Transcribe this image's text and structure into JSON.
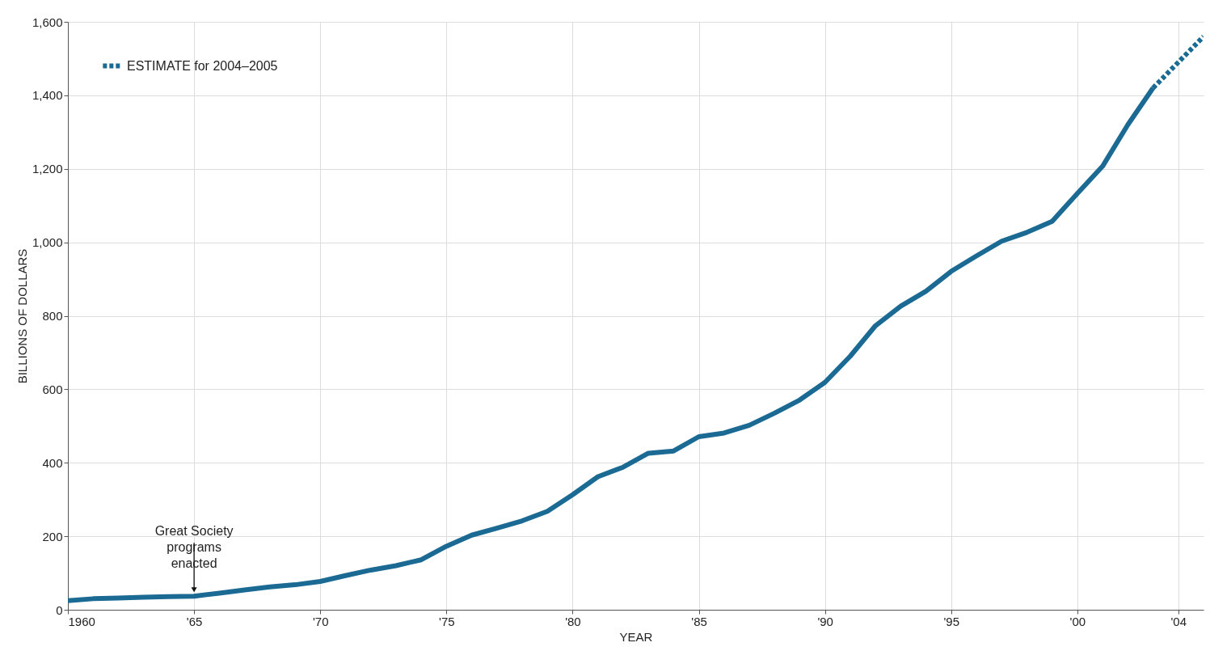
{
  "chart_data": {
    "type": "line",
    "xlabel": "YEAR",
    "ylabel": "BILLIONS OF DOLLARS",
    "x": [
      1960,
      1961,
      1962,
      1963,
      1964,
      1965,
      1966,
      1967,
      1968,
      1969,
      1970,
      1971,
      1972,
      1973,
      1974,
      1975,
      1976,
      1977,
      1978,
      1979,
      1980,
      1981,
      1982,
      1983,
      1984,
      1985,
      1986,
      1987,
      1988,
      1989,
      1990,
      1991,
      1992,
      1993,
      1994,
      1995,
      1996,
      1997,
      1998,
      1999,
      2000,
      2001,
      2002,
      2003
    ],
    "series": [
      {
        "color": "#1b6a94",
        "line_style": "solid",
        "values": [
          25,
          30,
          32,
          34,
          36,
          37,
          45,
          54,
          62,
          68,
          77,
          93,
          108,
          120,
          136,
          173,
          203,
          222,
          242,
          268,
          313,
          362,
          388,
          426,
          432,
          471,
          481,
          502,
          535,
          571,
          619,
          690,
          773,
          826,
          867,
          921,
          963,
          1003,
          1027,
          1057,
          1133,
          1207,
          1320,
          1420
        ]
      },
      {
        "name": "ESTIMATE for 2004–2005",
        "color": "#1b6a94",
        "line_style": "dotted",
        "x": [
          2003,
          2004,
          2005
        ],
        "values": [
          1420,
          1490,
          1560
        ]
      }
    ],
    "xlim": [
      1960,
      2005
    ],
    "xticks": [
      1960,
      {
        "value": 1965,
        "label": "'65"
      },
      {
        "value": 1970,
        "label": "'70"
      },
      {
        "value": 1975,
        "label": "'75"
      },
      {
        "value": 1980,
        "label": "'80"
      },
      {
        "value": 1985,
        "label": "'85"
      },
      {
        "value": 1990,
        "label": "'90"
      },
      {
        "value": 1995,
        "label": "'95"
      },
      {
        "value": 2000,
        "label": "'00"
      },
      {
        "value": 2004,
        "label": "'04"
      }
    ],
    "ylim": [
      0,
      1600
    ],
    "yticks": [
      0,
      200,
      400,
      600,
      800,
      {
        "value": 1000,
        "label": "1,000"
      },
      {
        "value": 1200,
        "label": "1,200"
      },
      {
        "value": 1400,
        "label": "1,400"
      },
      {
        "value": 1600,
        "label": "1,600"
      }
    ],
    "annotations": [
      {
        "text": "Great Society\nprograms\nenacted",
        "x": 1965,
        "y": 37
      }
    ],
    "grid": true,
    "legend": "top left"
  }
}
